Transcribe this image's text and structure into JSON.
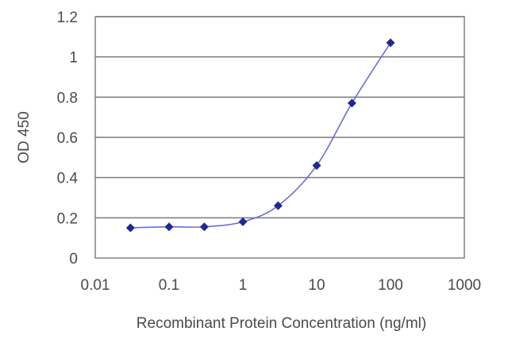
{
  "chart_data": {
    "type": "line",
    "title": "",
    "xlabel": "Recombinant Protein Concentration (ng/ml)",
    "ylabel": "OD 450",
    "x_scale": "log",
    "xlim": [
      0.01,
      1000
    ],
    "ylim": [
      0,
      1.2
    ],
    "x_ticks": [
      0.01,
      0.1,
      1,
      10,
      100,
      1000
    ],
    "x_tick_labels": [
      "0.01",
      "0.1",
      "1",
      "10",
      "100",
      "1000"
    ],
    "y_ticks": [
      0,
      0.2,
      0.4,
      0.6,
      0.8,
      1,
      1.2
    ],
    "y_tick_labels": [
      "0",
      "0.2",
      "0.4",
      "0.6",
      "0.8",
      "1",
      "1.2"
    ],
    "grid": "horizontal",
    "legend": "none",
    "series": [
      {
        "x": [
          0.03,
          0.1,
          0.3,
          1,
          3,
          10,
          30,
          100
        ],
        "y": [
          0.15,
          0.155,
          0.155,
          0.18,
          0.26,
          0.46,
          0.77,
          1.07
        ],
        "color": "#1f2a8c",
        "line_color": "#6a6ed6"
      }
    ]
  }
}
